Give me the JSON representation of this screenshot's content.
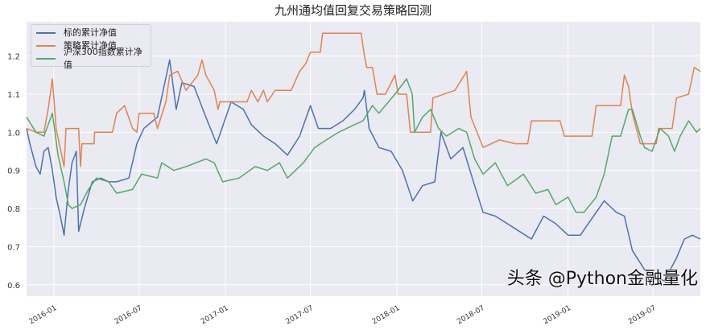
{
  "chart_data": {
    "type": "line",
    "title": "九州通均值回复交易策略回测",
    "xlabel": "",
    "ylabel": "",
    "xlim": [
      "2015-11-04",
      "2019-10-10"
    ],
    "ylim": [
      0.57,
      1.29
    ],
    "grid": true,
    "legend_position": "top-left",
    "x_ticks": [
      "2016-01",
      "2016-07",
      "2017-01",
      "2017-07",
      "2018-01",
      "2018-07",
      "2019-01",
      "2019-07"
    ],
    "y_ticks": [
      0.6,
      0.7,
      0.8,
      0.9,
      1.0,
      1.1,
      1.2
    ],
    "y_tick_labels": [
      "0.6",
      "0.7",
      "0.8",
      "0.9",
      "1.0",
      "1.1",
      "1.2"
    ],
    "background_color": "#EAEAF2",
    "series": [
      {
        "name": "标的累计净值",
        "color": "#4C72B0",
        "points": [
          [
            "2015-11-04",
            1.01
          ],
          [
            "2015-11-11",
            0.97
          ],
          [
            "2015-11-24",
            0.91
          ],
          [
            "2015-12-03",
            0.89
          ],
          [
            "2015-12-11",
            0.95
          ],
          [
            "2015-12-20",
            0.96
          ],
          [
            "2015-12-29",
            0.9
          ],
          [
            "2016-01-06",
            0.83
          ],
          [
            "2016-01-15",
            0.78
          ],
          [
            "2016-01-23",
            0.73
          ],
          [
            "2016-02-01",
            0.85
          ],
          [
            "2016-02-09",
            0.92
          ],
          [
            "2016-02-18",
            0.95
          ],
          [
            "2016-02-23",
            0.74
          ],
          [
            "2016-03-06",
            0.8
          ],
          [
            "2016-03-23",
            0.87
          ],
          [
            "2016-04-10",
            0.88
          ],
          [
            "2016-04-27",
            0.87
          ],
          [
            "2016-05-14",
            0.87
          ],
          [
            "2016-06-09",
            0.88
          ],
          [
            "2016-06-26",
            0.97
          ],
          [
            "2016-07-11",
            1.01
          ],
          [
            "2016-08-09",
            1.04
          ],
          [
            "2016-09-04",
            1.19
          ],
          [
            "2016-09-18",
            1.06
          ],
          [
            "2016-09-30",
            1.13
          ],
          [
            "2016-10-26",
            1.12
          ],
          [
            "2016-11-20",
            1.04
          ],
          [
            "2016-12-13",
            0.97
          ],
          [
            "2017-01-13",
            1.08
          ],
          [
            "2017-02-08",
            1.06
          ],
          [
            "2017-02-25",
            1.02
          ],
          [
            "2017-03-23",
            0.99
          ],
          [
            "2017-04-17",
            0.97
          ],
          [
            "2017-05-13",
            0.94
          ],
          [
            "2017-06-08",
            0.99
          ],
          [
            "2017-07-01",
            1.07
          ],
          [
            "2017-07-18",
            1.01
          ],
          [
            "2017-08-13",
            1.01
          ],
          [
            "2017-09-08",
            1.03
          ],
          [
            "2017-10-03",
            1.06
          ],
          [
            "2017-10-21",
            1.09
          ],
          [
            "2017-10-24",
            1.11
          ],
          [
            "2017-11-03",
            1.01
          ],
          [
            "2017-11-24",
            0.96
          ],
          [
            "2017-12-20",
            0.95
          ],
          [
            "2018-01-13",
            0.9
          ],
          [
            "2018-02-04",
            0.82
          ],
          [
            "2018-02-25",
            0.86
          ],
          [
            "2018-03-23",
            0.87
          ],
          [
            "2018-04-05",
            1.0
          ],
          [
            "2018-04-26",
            0.93
          ],
          [
            "2018-05-22",
            0.96
          ],
          [
            "2018-06-16",
            0.86
          ],
          [
            "2018-07-04",
            0.79
          ],
          [
            "2018-07-30",
            0.78
          ],
          [
            "2018-08-25",
            0.76
          ],
          [
            "2018-10-15",
            0.72
          ],
          [
            "2018-11-10",
            0.78
          ],
          [
            "2018-12-06",
            0.76
          ],
          [
            "2019-01-01",
            0.73
          ],
          [
            "2019-01-27",
            0.73
          ],
          [
            "2019-03-02",
            0.79
          ],
          [
            "2019-03-19",
            0.82
          ],
          [
            "2019-04-14",
            0.79
          ],
          [
            "2019-05-01",
            0.78
          ],
          [
            "2019-05-18",
            0.69
          ],
          [
            "2019-06-13",
            0.64
          ],
          [
            "2019-07-08",
            0.62
          ],
          [
            "2019-07-25",
            0.61
          ],
          [
            "2019-08-20",
            0.67
          ],
          [
            "2019-09-06",
            0.72
          ],
          [
            "2019-09-23",
            0.73
          ],
          [
            "2019-10-10",
            0.72
          ]
        ]
      },
      {
        "name": "策略累计净值",
        "color": "#DD8452",
        "points": [
          [
            "2015-11-04",
            1.01
          ],
          [
            "2015-11-24",
            1.0
          ],
          [
            "2015-12-11",
            1.0
          ],
          [
            "2015-12-20",
            1.06
          ],
          [
            "2015-12-29",
            1.14
          ],
          [
            "2016-01-06",
            1.01
          ],
          [
            "2016-01-23",
            0.91
          ],
          [
            "2016-01-27",
            1.01
          ],
          [
            "2016-02-23",
            1.01
          ],
          [
            "2016-02-27",
            0.91
          ],
          [
            "2016-03-01",
            0.97
          ],
          [
            "2016-03-27",
            0.97
          ],
          [
            "2016-03-28",
            1.0
          ],
          [
            "2016-05-05",
            1.0
          ],
          [
            "2016-05-14",
            1.05
          ],
          [
            "2016-05-31",
            1.07
          ],
          [
            "2016-06-17",
            1.01
          ],
          [
            "2016-06-26",
            1.0
          ],
          [
            "2016-07-01",
            1.05
          ],
          [
            "2016-08-01",
            1.05
          ],
          [
            "2016-08-09",
            1.01
          ],
          [
            "2016-08-27",
            1.08
          ],
          [
            "2016-09-04",
            1.15
          ],
          [
            "2016-09-21",
            1.16
          ],
          [
            "2016-10-09",
            1.11
          ],
          [
            "2016-11-03",
            1.15
          ],
          [
            "2016-11-12",
            1.19
          ],
          [
            "2016-11-20",
            1.15
          ],
          [
            "2016-12-08",
            1.11
          ],
          [
            "2016-12-16",
            1.06
          ],
          [
            "2016-12-20",
            1.08
          ],
          [
            "2017-02-16",
            1.08
          ],
          [
            "2017-02-25",
            1.11
          ],
          [
            "2017-03-11",
            1.08
          ],
          [
            "2017-03-23",
            1.11
          ],
          [
            "2017-03-31",
            1.08
          ],
          [
            "2017-04-17",
            1.11
          ],
          [
            "2017-05-21",
            1.11
          ],
          [
            "2017-06-08",
            1.16
          ],
          [
            "2017-06-21",
            1.18
          ],
          [
            "2017-07-01",
            1.21
          ],
          [
            "2017-07-22",
            1.21
          ],
          [
            "2017-07-27",
            1.26
          ],
          [
            "2017-10-17",
            1.26
          ],
          [
            "2017-10-24",
            1.2
          ],
          [
            "2017-10-29",
            1.17
          ],
          [
            "2017-11-10",
            1.17
          ],
          [
            "2017-11-20",
            1.1
          ],
          [
            "2017-12-08",
            1.1
          ],
          [
            "2017-12-28",
            1.15
          ],
          [
            "2018-01-04",
            1.1
          ],
          [
            "2018-01-22",
            1.1
          ],
          [
            "2018-01-30",
            1.0
          ],
          [
            "2018-03-14",
            1.0
          ],
          [
            "2018-03-19",
            1.09
          ],
          [
            "2018-05-05",
            1.11
          ],
          [
            "2018-05-30",
            1.16
          ],
          [
            "2018-06-08",
            1.04
          ],
          [
            "2018-07-04",
            0.96
          ],
          [
            "2018-08-08",
            0.98
          ],
          [
            "2018-09-11",
            0.97
          ],
          [
            "2018-10-07",
            0.97
          ],
          [
            "2018-10-15",
            1.03
          ],
          [
            "2018-12-15",
            1.03
          ],
          [
            "2018-12-24",
            0.99
          ],
          [
            "2019-02-21",
            0.99
          ],
          [
            "2019-03-02",
            1.07
          ],
          [
            "2019-04-23",
            1.07
          ],
          [
            "2019-05-01",
            1.15
          ],
          [
            "2019-05-10",
            1.12
          ],
          [
            "2019-05-18",
            1.05
          ],
          [
            "2019-06-04",
            0.97
          ],
          [
            "2019-07-08",
            0.97
          ],
          [
            "2019-07-13",
            1.01
          ],
          [
            "2019-08-11",
            1.01
          ],
          [
            "2019-08-20",
            1.09
          ],
          [
            "2019-09-15",
            1.1
          ],
          [
            "2019-09-27",
            1.17
          ],
          [
            "2019-10-10",
            1.16
          ]
        ]
      },
      {
        "name": "沪深300指数累计净值",
        "color": "#55A868",
        "points": [
          [
            "2015-11-04",
            1.04
          ],
          [
            "2015-11-24",
            1.0
          ],
          [
            "2015-12-11",
            0.99
          ],
          [
            "2015-12-29",
            1.05
          ],
          [
            "2016-01-10",
            0.94
          ],
          [
            "2016-01-23",
            0.87
          ],
          [
            "2016-02-01",
            0.81
          ],
          [
            "2016-02-09",
            0.8
          ],
          [
            "2016-02-27",
            0.81
          ],
          [
            "2016-03-15",
            0.85
          ],
          [
            "2016-04-01",
            0.88
          ],
          [
            "2016-04-27",
            0.87
          ],
          [
            "2016-05-14",
            0.84
          ],
          [
            "2016-06-17",
            0.85
          ],
          [
            "2016-07-06",
            0.89
          ],
          [
            "2016-08-09",
            0.88
          ],
          [
            "2016-08-18",
            0.92
          ],
          [
            "2016-09-13",
            0.9
          ],
          [
            "2016-10-09",
            0.91
          ],
          [
            "2016-11-20",
            0.93
          ],
          [
            "2016-12-08",
            0.92
          ],
          [
            "2016-12-26",
            0.87
          ],
          [
            "2017-01-30",
            0.88
          ],
          [
            "2017-03-05",
            0.91
          ],
          [
            "2017-03-31",
            0.9
          ],
          [
            "2017-04-26",
            0.92
          ],
          [
            "2017-05-13",
            0.88
          ],
          [
            "2017-06-16",
            0.92
          ],
          [
            "2017-07-10",
            0.96
          ],
          [
            "2017-08-04",
            0.98
          ],
          [
            "2017-08-30",
            1.0
          ],
          [
            "2017-10-03",
            1.02
          ],
          [
            "2017-10-21",
            1.03
          ],
          [
            "2017-11-10",
            1.07
          ],
          [
            "2017-11-24",
            1.05
          ],
          [
            "2017-12-28",
            1.1
          ],
          [
            "2018-01-22",
            1.14
          ],
          [
            "2018-02-03",
            1.1
          ],
          [
            "2018-02-08",
            1.0
          ],
          [
            "2018-02-25",
            1.04
          ],
          [
            "2018-03-14",
            1.06
          ],
          [
            "2018-03-31",
            1.01
          ],
          [
            "2018-04-17",
            0.99
          ],
          [
            "2018-05-13",
            1.01
          ],
          [
            "2018-05-30",
            1.0
          ],
          [
            "2018-06-16",
            0.93
          ],
          [
            "2018-07-04",
            0.89
          ],
          [
            "2018-07-30",
            0.92
          ],
          [
            "2018-08-25",
            0.86
          ],
          [
            "2018-09-28",
            0.89
          ],
          [
            "2018-10-24",
            0.84
          ],
          [
            "2018-11-19",
            0.85
          ],
          [
            "2018-12-06",
            0.81
          ],
          [
            "2019-01-01",
            0.83
          ],
          [
            "2019-01-18",
            0.79
          ],
          [
            "2019-02-04",
            0.79
          ],
          [
            "2019-03-02",
            0.83
          ],
          [
            "2019-03-19",
            0.89
          ],
          [
            "2019-04-05",
            0.99
          ],
          [
            "2019-04-23",
            0.99
          ],
          [
            "2019-05-10",
            1.06
          ],
          [
            "2019-05-18",
            1.06
          ],
          [
            "2019-06-04",
            0.99
          ],
          [
            "2019-06-13",
            0.96
          ],
          [
            "2019-06-29",
            0.95
          ],
          [
            "2019-07-16",
            1.01
          ],
          [
            "2019-08-03",
            0.99
          ],
          [
            "2019-08-16",
            0.95
          ],
          [
            "2019-08-28",
            0.99
          ],
          [
            "2019-09-15",
            1.03
          ],
          [
            "2019-10-02",
            1.0
          ],
          [
            "2019-10-10",
            1.01
          ]
        ]
      }
    ]
  },
  "watermark": "头条 @Python金融量化"
}
